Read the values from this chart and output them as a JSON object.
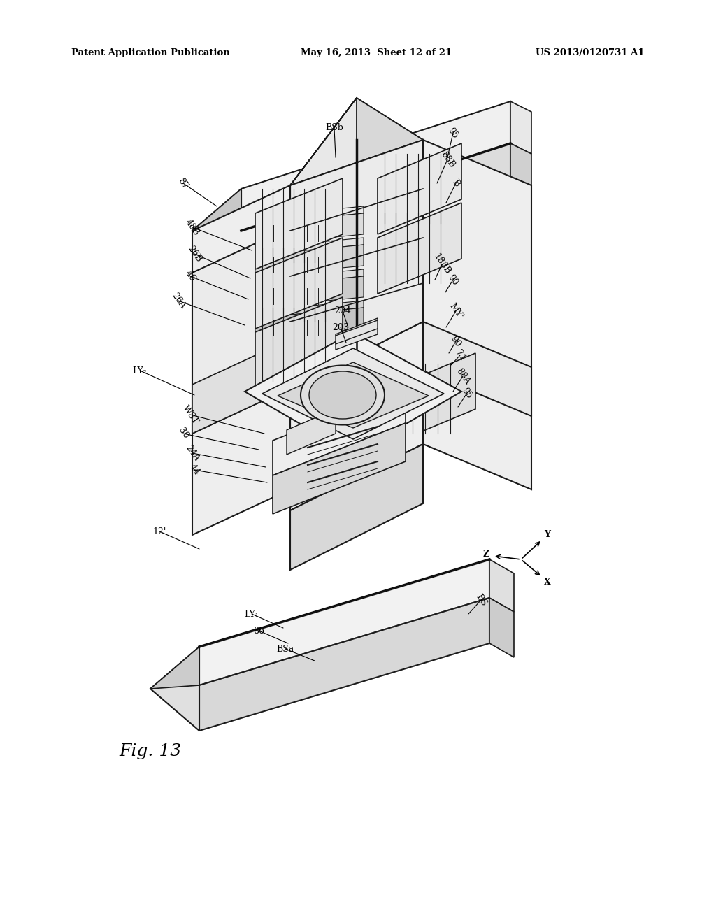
{
  "header_left": "Patent Application Publication",
  "header_center": "May 16, 2013  Sheet 12 of 21",
  "header_right": "US 2013/0120731 A1",
  "figure_label": "Fig. 13",
  "background_color": "#ffffff",
  "line_color": "#1a1a1a",
  "lc2": "#333333"
}
